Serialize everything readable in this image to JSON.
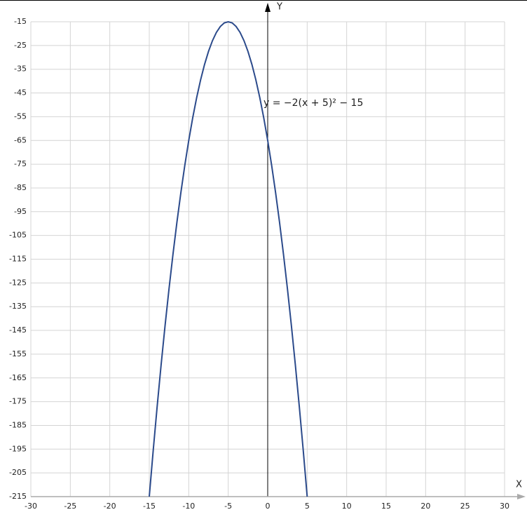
{
  "chart_data": {
    "type": "line",
    "annotation": "y = −2(x + 5)² − 15",
    "x_label": "X",
    "y_label": "Y",
    "x": [
      -15,
      -14.5,
      -14,
      -13.5,
      -13,
      -12.5,
      -12,
      -11.5,
      -11,
      -10.5,
      -10,
      -9.5,
      -9,
      -8.5,
      -8,
      -7.5,
      -7,
      -6.5,
      -6,
      -5.5,
      -5,
      -4.5,
      -4,
      -3.5,
      -3,
      -2.5,
      -2,
      -1.5,
      -1,
      -0.5,
      0,
      0.5,
      1,
      1.5,
      2,
      2.5,
      3,
      3.5,
      4,
      4.5,
      5
    ],
    "series": [
      {
        "color": "#2b4a8b",
        "values": [
          -215,
          -195.5,
          -177,
          -159.5,
          -143,
          -127.5,
          -113,
          -99.5,
          -87,
          -75.5,
          -65,
          -55.5,
          -47,
          -39.5,
          -33,
          -27.5,
          -23,
          -19.5,
          -17,
          -15.5,
          -15,
          -15.5,
          -17,
          -19.5,
          -23,
          -27.5,
          -33,
          -39.5,
          -47,
          -55.5,
          -65,
          -75.5,
          -87,
          -99.5,
          -113,
          -127.5,
          -143,
          -159.5,
          -177,
          -195.5,
          -215
        ]
      }
    ],
    "xlim": [
      -30,
      30
    ],
    "xticks": [
      -30,
      -25,
      -20,
      -15,
      -10,
      -5,
      0,
      5,
      10,
      15,
      20,
      25,
      30
    ],
    "ylim": [
      -215,
      -15
    ],
    "yticks": [
      -15,
      -25,
      -35,
      -45,
      -55,
      -65,
      -75,
      -85,
      -95,
      -105,
      -115,
      -125,
      -135,
      -145,
      -155,
      -165,
      -175,
      -185,
      -195,
      -205,
      -215
    ],
    "grid": true
  }
}
